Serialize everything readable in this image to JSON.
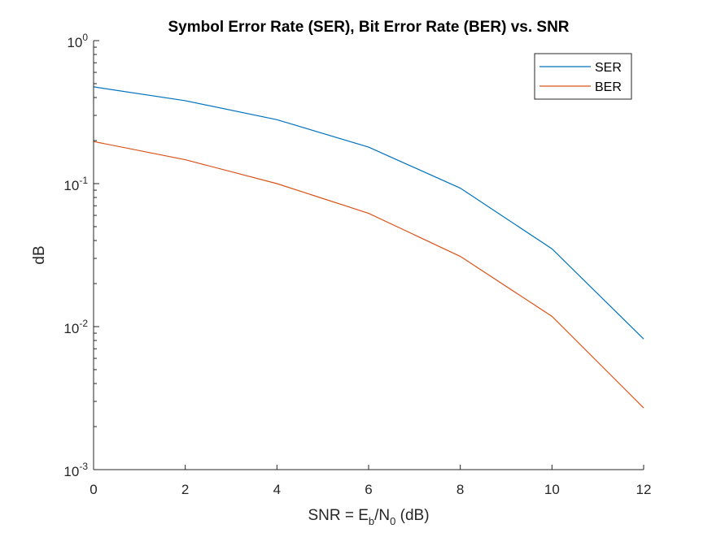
{
  "chart_data": {
    "type": "line",
    "title": "Symbol Error Rate (SER), Bit Error Rate (BER) vs. SNR",
    "xlabel": {
      "prefix": "SNR = E",
      "sub1": "b",
      "mid": "/N",
      "sub2": "0",
      "suffix": " (dB)"
    },
    "ylabel": "dB",
    "x": [
      0,
      2,
      4,
      6,
      8,
      10,
      12
    ],
    "xlim": [
      0,
      12
    ],
    "xticks": [
      0,
      2,
      4,
      6,
      8,
      10,
      12
    ],
    "y_scale": "log",
    "ylim": [
      0.001,
      1
    ],
    "yticks": [
      {
        "value": 1,
        "base": "10",
        "exp": "0"
      },
      {
        "value": 0.1,
        "base": "10",
        "exp": "-1"
      },
      {
        "value": 0.01,
        "base": "10",
        "exp": "-2"
      },
      {
        "value": 0.001,
        "base": "10",
        "exp": "-3"
      }
    ],
    "grid": false,
    "legend_position": "top-right",
    "series": [
      {
        "name": "SER",
        "color": "#0072BD",
        "values": [
          0.475,
          0.38,
          0.28,
          0.18,
          0.093,
          0.035,
          0.0082
        ]
      },
      {
        "name": "BER",
        "color": "#D95319",
        "values": [
          0.197,
          0.147,
          0.1,
          0.062,
          0.031,
          0.0118,
          0.0027
        ]
      }
    ]
  }
}
